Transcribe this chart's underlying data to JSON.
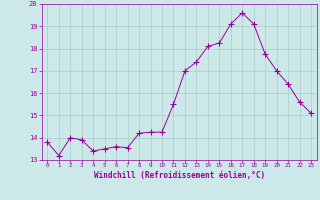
{
  "x": [
    0,
    1,
    2,
    3,
    4,
    5,
    6,
    7,
    8,
    9,
    10,
    11,
    12,
    13,
    14,
    15,
    16,
    17,
    18,
    19,
    20,
    21,
    22,
    23
  ],
  "y": [
    13.8,
    13.2,
    14.0,
    13.9,
    13.4,
    13.5,
    13.6,
    13.55,
    14.2,
    14.25,
    14.25,
    15.5,
    17.0,
    17.4,
    18.1,
    18.25,
    19.1,
    19.6,
    19.1,
    17.75,
    17.0,
    16.4,
    15.6,
    15.1
  ],
  "line_color": "#990099",
  "marker": "D",
  "marker_size": 2,
  "bg_color": "#cce8e8",
  "grid_color": "#aacccc",
  "tick_color": "#990099",
  "label_color": "#990099",
  "xlabel": "Windchill (Refroidissement éolien,°C)",
  "xlim": [
    -0.5,
    23.5
  ],
  "ylim": [
    13,
    20
  ],
  "yticks": [
    13,
    14,
    15,
    16,
    17,
    18,
    19,
    20
  ],
  "xticks": [
    0,
    1,
    2,
    3,
    4,
    5,
    6,
    7,
    8,
    9,
    10,
    11,
    12,
    13,
    14,
    15,
    16,
    17,
    18,
    19,
    20,
    21,
    22,
    23
  ]
}
